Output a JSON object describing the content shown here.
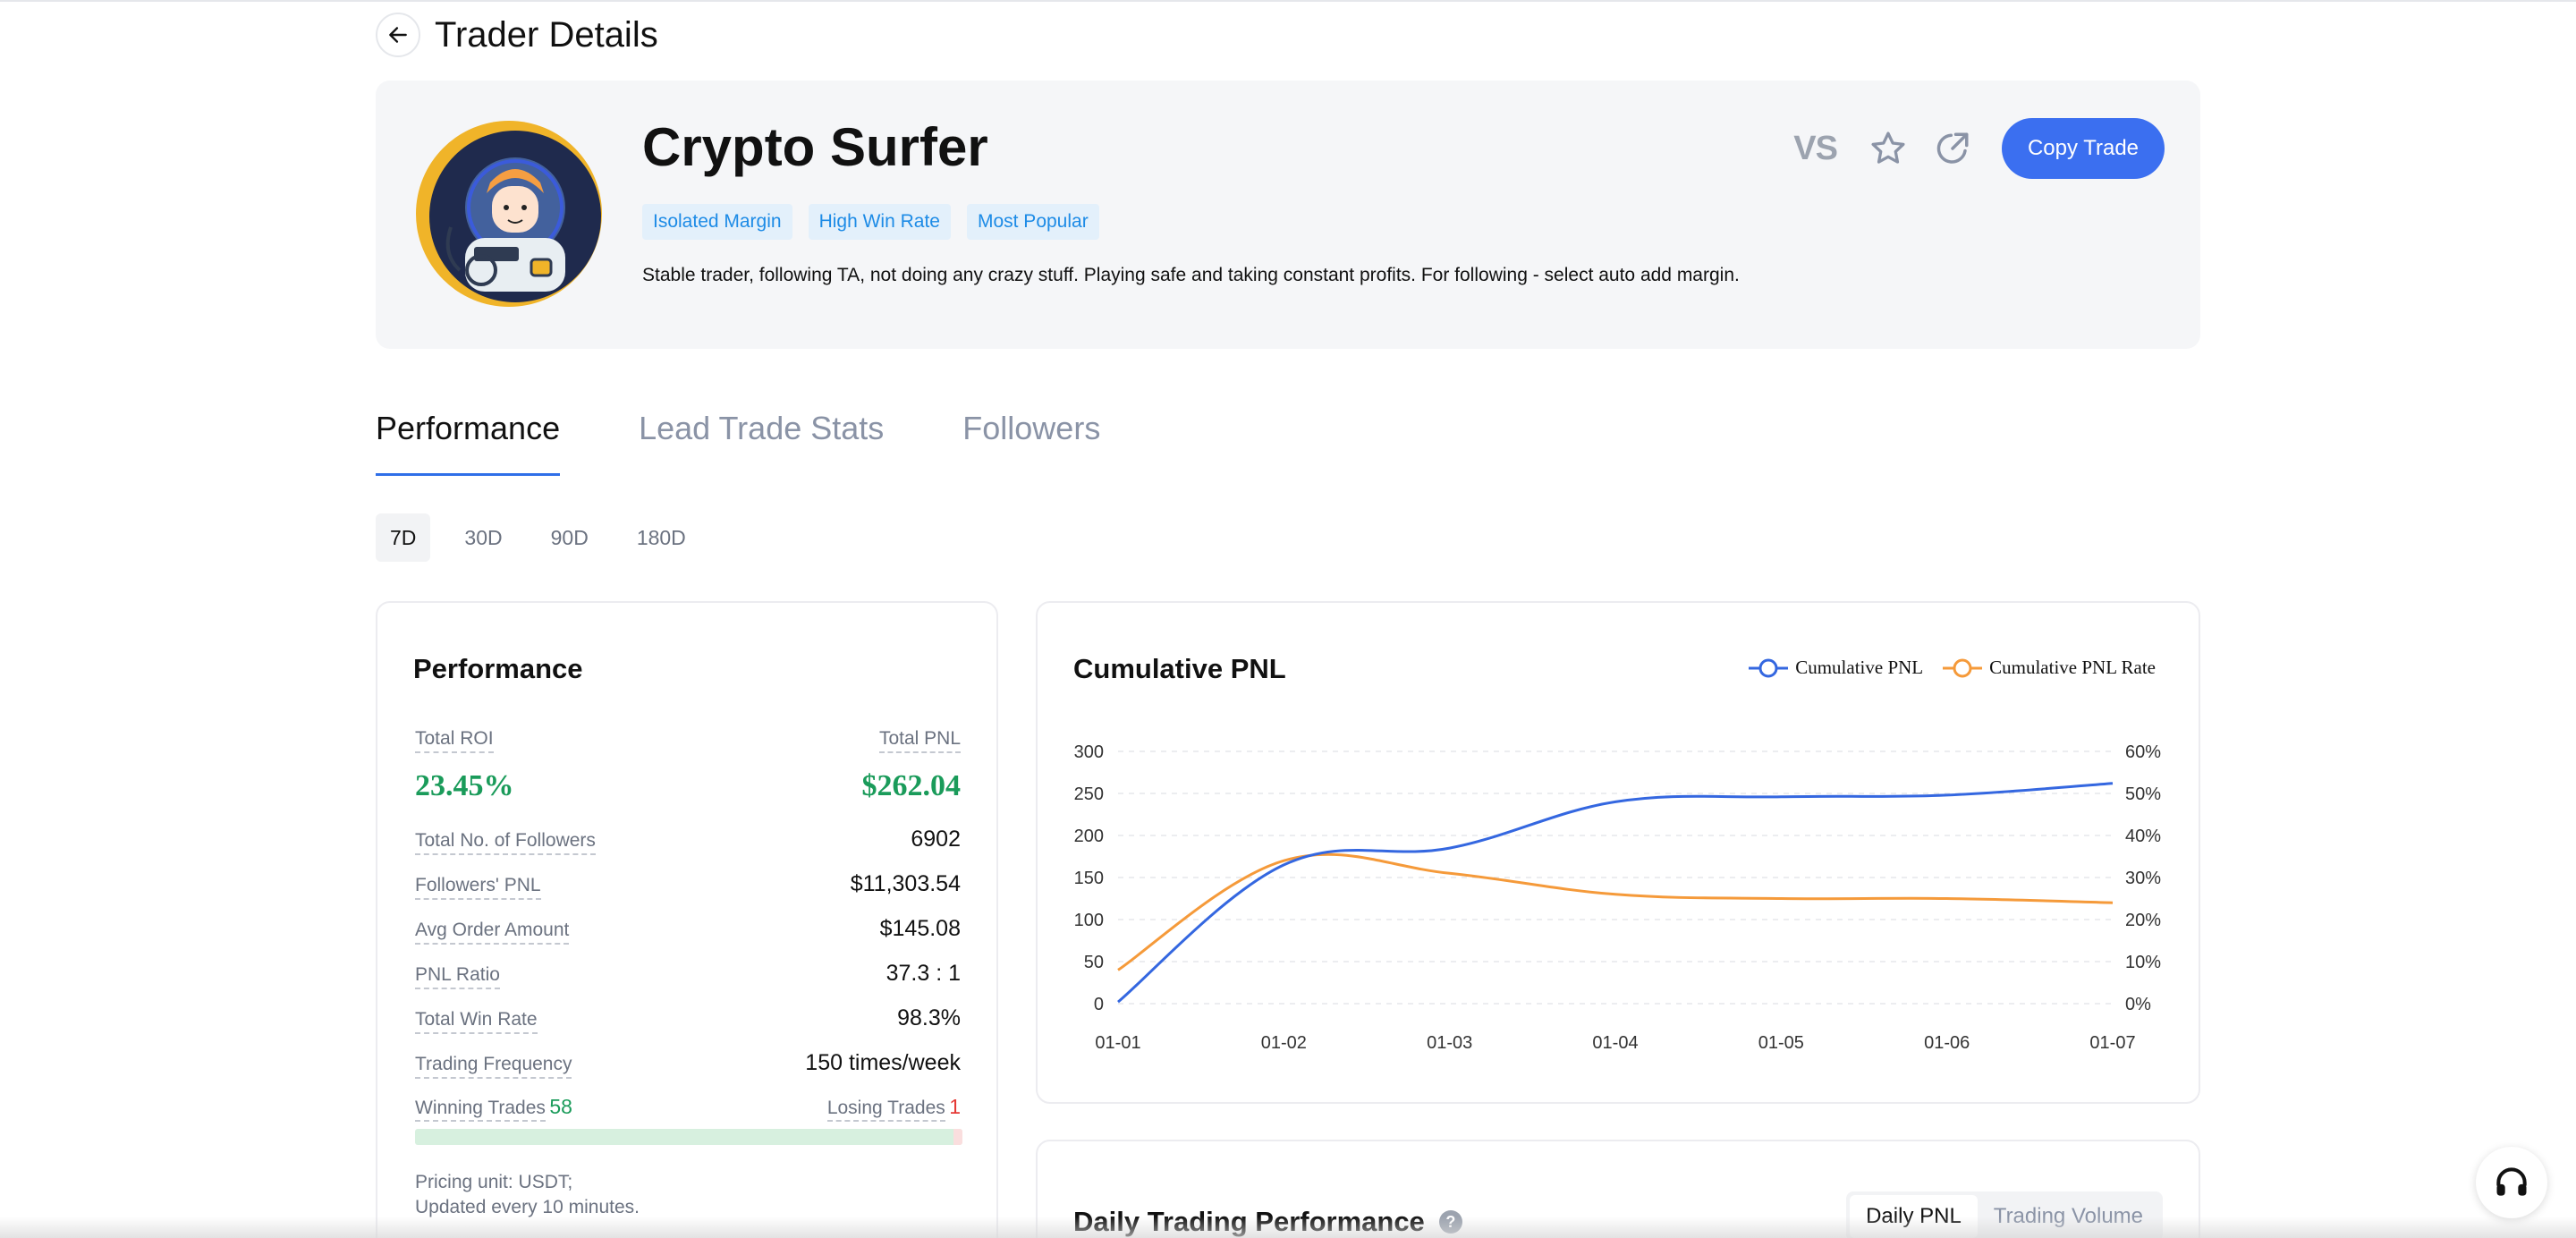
{
  "header": {
    "title": "Trader Details"
  },
  "profile": {
    "name": "Crypto Surfer",
    "tags": [
      "Isolated Margin",
      "High Win Rate",
      "Most Popular"
    ],
    "bio": "Stable trader, following TA, not doing any crazy stuff. Playing safe and taking constant profits. For following - select auto add margin.",
    "vs_label": "VS",
    "copy_label": "Copy Trade"
  },
  "tabs": [
    "Performance",
    "Lead Trade Stats",
    "Followers"
  ],
  "periods": [
    "7D",
    "30D",
    "90D",
    "180D"
  ],
  "performance": {
    "title": "Performance",
    "total_roi_label": "Total ROI",
    "total_roi": "23.45%",
    "total_pnl_label": "Total PNL",
    "total_pnl": "$262.04",
    "followers_label": "Total No. of Followers",
    "followers": "6902",
    "followers_pnl_label": "Followers' PNL",
    "followers_pnl": "$11,303.54",
    "avg_order_label": "Avg Order Amount",
    "avg_order": "$145.08",
    "pnl_ratio_label": "PNL Ratio",
    "pnl_ratio": "37.3 : 1",
    "win_rate_label": "Total Win Rate",
    "win_rate": "98.3%",
    "frequency_label": "Trading Frequency",
    "frequency": "150 times/week",
    "winning_label": "Winning Trades",
    "winning": "58",
    "losing_label": "Losing Trades",
    "losing": "1",
    "pricing_line1": "Pricing unit: USDT;",
    "pricing_line2": "Updated every 10 minutes."
  },
  "daily": {
    "title": "Daily Trading Performance",
    "help": "?",
    "toggle": [
      "Daily PNL",
      "Trading Volume"
    ]
  },
  "colors": {
    "accent": "#3b6ff0",
    "pnl_line": "#3467e0",
    "rate_line": "#f59a3a",
    "green": "#1a9b5a",
    "red": "#e53935"
  },
  "chart_data": {
    "type": "line",
    "title": "Cumulative PNL",
    "x": [
      "01-01",
      "01-02",
      "01-03",
      "01-04",
      "01-05",
      "01-06",
      "01-07"
    ],
    "series": [
      {
        "name": "Cumulative PNL",
        "axis": "left",
        "values": [
          2,
          165,
          185,
          240,
          246,
          248,
          262
        ]
      },
      {
        "name": "Cumulative PNL Rate",
        "axis": "right",
        "values": [
          8,
          34,
          31,
          26,
          25,
          25,
          24
        ]
      }
    ],
    "y_left": {
      "ticks": [
        "300",
        "250",
        "200",
        "150",
        "100",
        "50",
        "0"
      ],
      "range": [
        0,
        300
      ]
    },
    "y_right": {
      "ticks": [
        "60%",
        "50%",
        "40%",
        "30%",
        "20%",
        "10%",
        "0%"
      ],
      "range": [
        0,
        60
      ]
    },
    "grid": true,
    "legend_position": "top-right"
  }
}
